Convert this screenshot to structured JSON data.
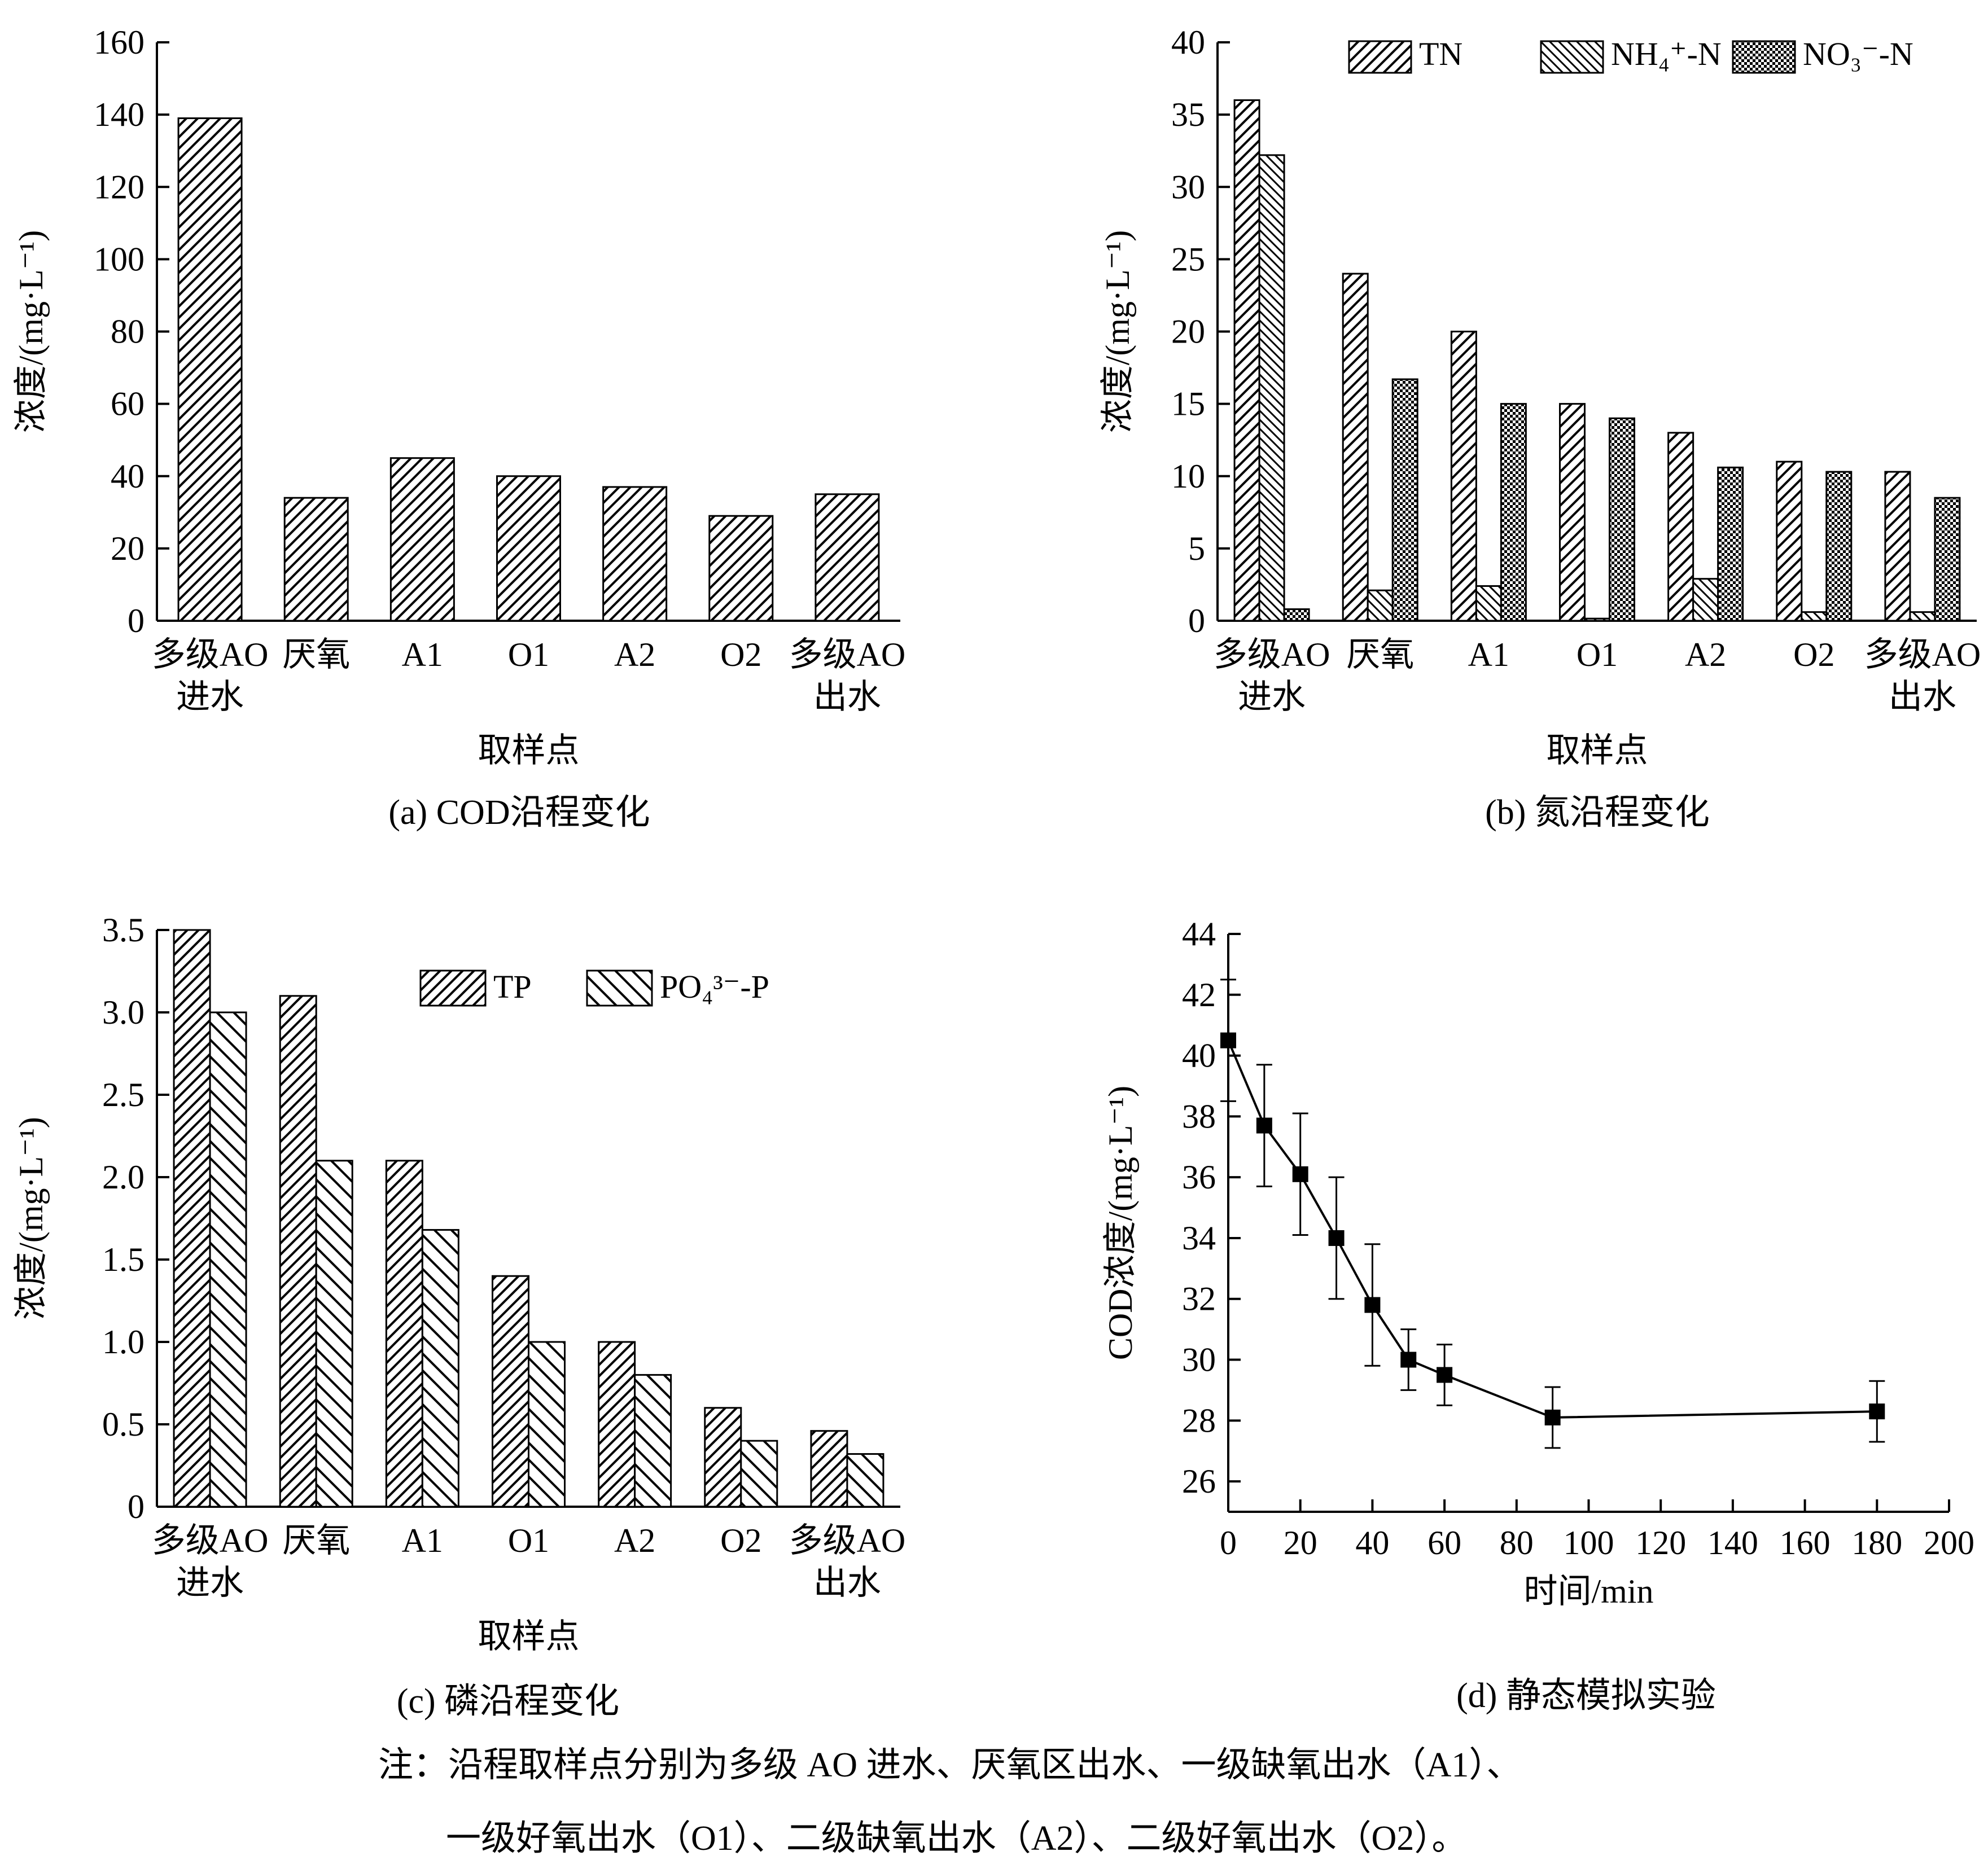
{
  "chart_data": [
    {
      "panel": "a",
      "type": "bar",
      "caption": "(a) COD沿程变化",
      "xlabel": "取样点",
      "ylabel": "浓度/(mg·L⁻¹)",
      "categories": [
        [
          "多级AO",
          "进水"
        ],
        [
          "厌氧"
        ],
        [
          "A1"
        ],
        [
          "O1"
        ],
        [
          "A2"
        ],
        [
          "O2"
        ],
        [
          "多级AO",
          "出水"
        ]
      ],
      "ylim": [
        0,
        160
      ],
      "yticks": [
        "0",
        "20",
        "40",
        "60",
        "80",
        "100",
        "120",
        "140",
        "160"
      ],
      "series": [
        {
          "name": "COD",
          "pattern": "hatch-fwd",
          "values": [
            139,
            34,
            45,
            40,
            37,
            29,
            35
          ]
        }
      ]
    },
    {
      "panel": "b",
      "type": "bar",
      "caption": "(b) 氮沿程变化",
      "xlabel": "取样点",
      "ylabel": "浓度/(mg·L⁻¹)",
      "categories": [
        [
          "多级AO",
          "进水"
        ],
        [
          "厌氧"
        ],
        [
          "A1"
        ],
        [
          "O1"
        ],
        [
          "A2"
        ],
        [
          "O2"
        ],
        [
          "多级AO",
          "出水"
        ]
      ],
      "ylim": [
        0,
        40
      ],
      "yticks": [
        "0",
        "5",
        "10",
        "15",
        "20",
        "25",
        "30",
        "35",
        "40"
      ],
      "legend": {
        "position": "top",
        "entries": [
          "TN",
          "NH₄⁺-N",
          "NO₃⁻-N"
        ]
      },
      "series": [
        {
          "name": "TN",
          "pattern": "hatch-fwd",
          "values": [
            36,
            24,
            20,
            15,
            13,
            11,
            10.3
          ]
        },
        {
          "name": "NH₄⁺-N",
          "pattern": "hatch-back",
          "values": [
            32.2,
            2.1,
            2.4,
            0.15,
            2.9,
            0.6,
            0.6
          ]
        },
        {
          "name": "NO₃⁻-N",
          "pattern": "dots",
          "values": [
            0.8,
            16.7,
            15,
            14,
            10.6,
            10.3,
            8.5
          ]
        }
      ]
    },
    {
      "panel": "c",
      "type": "bar",
      "caption": "(c) 磷沿程变化",
      "xlabel": "取样点",
      "ylabel": "浓度/(mg·L⁻¹)",
      "categories": [
        [
          "多级AO",
          "进水"
        ],
        [
          "厌氧"
        ],
        [
          "A1"
        ],
        [
          "O1"
        ],
        [
          "A2"
        ],
        [
          "O2"
        ],
        [
          "多级AO",
          "出水"
        ]
      ],
      "ylim": [
        0,
        3.5
      ],
      "yticks": [
        "0",
        "0.5",
        "1.0",
        "1.5",
        "2.0",
        "2.5",
        "3.0",
        "3.5"
      ],
      "legend": {
        "position": "top",
        "entries": [
          "TP",
          "PO₄³⁻-P"
        ]
      },
      "series": [
        {
          "name": "TP",
          "pattern": "hatch-fwd",
          "values": [
            3.5,
            3.1,
            2.1,
            1.4,
            1.0,
            0.6,
            0.46
          ]
        },
        {
          "name": "PO₄³⁻-P",
          "pattern": "hatch-back-wide",
          "values": [
            3.0,
            2.1,
            1.68,
            1.0,
            0.8,
            0.4,
            0.32
          ]
        }
      ]
    },
    {
      "panel": "d",
      "type": "line",
      "caption": "(d) 静态模拟实验",
      "xlabel": "时间/min",
      "ylabel": "COD浓度/(mg·L⁻¹)",
      "xlim": [
        0,
        200
      ],
      "ylim": [
        25,
        44
      ],
      "xticks": [
        "0",
        "20",
        "40",
        "60",
        "80",
        "100",
        "120",
        "140",
        "160",
        "180",
        "200"
      ],
      "yticks": [
        "26",
        "28",
        "30",
        "32",
        "34",
        "36",
        "38",
        "40",
        "42",
        "44"
      ],
      "series": [
        {
          "name": "COD",
          "x": [
            0,
            10,
            20,
            30,
            40,
            50,
            60,
            90,
            180
          ],
          "y": [
            40.5,
            37.7,
            36.1,
            34.0,
            31.8,
            30.0,
            29.5,
            28.1,
            28.3
          ],
          "err": [
            2.0,
            2.0,
            2.0,
            2.0,
            2.0,
            1.0,
            1.0,
            1.0,
            1.0
          ]
        }
      ]
    }
  ],
  "note": {
    "line1": "注：沿程取样点分别为多级 AO 进水、厌氧区出水、一级缺氧出水（A1）、",
    "line2": "一级好氧出水（O1）、二级缺氧出水（A2）、二级好氧出水（O2）。"
  }
}
